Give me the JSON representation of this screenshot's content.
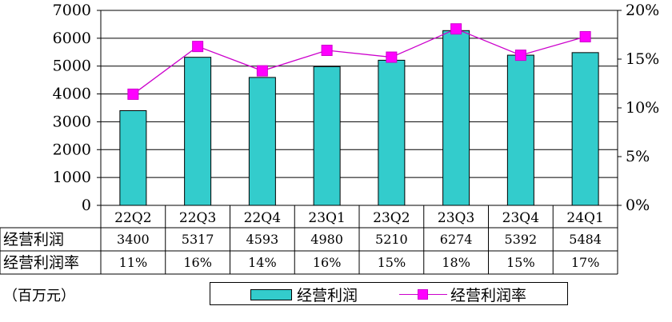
{
  "chart_data": {
    "type": "bar",
    "categories": [
      "22Q2",
      "22Q3",
      "22Q4",
      "23Q1",
      "23Q2",
      "23Q3",
      "23Q4",
      "24Q1"
    ],
    "series": [
      {
        "name": "经营利润",
        "type": "bar",
        "values": [
          3400,
          5317,
          4593,
          4980,
          5210,
          6274,
          5392,
          5484
        ],
        "color": "#33CCCC"
      },
      {
        "name": "经营利润率",
        "type": "line",
        "axis": "right",
        "values": [
          11.4,
          16.3,
          13.8,
          15.9,
          15.2,
          18.1,
          15.4,
          17.3
        ],
        "color": "#FF00FF"
      }
    ],
    "ylim": [
      0,
      7000
    ],
    "y_ticks": [
      0,
      1000,
      2000,
      3000,
      4000,
      5000,
      6000,
      7000
    ],
    "y2lim": [
      0,
      20
    ],
    "y2_ticks": [
      "0%",
      "5%",
      "10%",
      "15%",
      "20%"
    ],
    "grid": true,
    "legend_position": "bottom",
    "table": {
      "row1_label": "经营利润",
      "row1_values": [
        "3400",
        "5317",
        "4593",
        "4980",
        "5210",
        "6274",
        "5392",
        "5484"
      ],
      "row2_label": "经营利润率",
      "row2_values": [
        "11%",
        "16%",
        "14%",
        "16%",
        "15%",
        "18%",
        "15%",
        "17%"
      ]
    },
    "unit_label": "（百万元）"
  },
  "legend": {
    "bar_label": "经营利润",
    "line_label": "经营利润率"
  }
}
